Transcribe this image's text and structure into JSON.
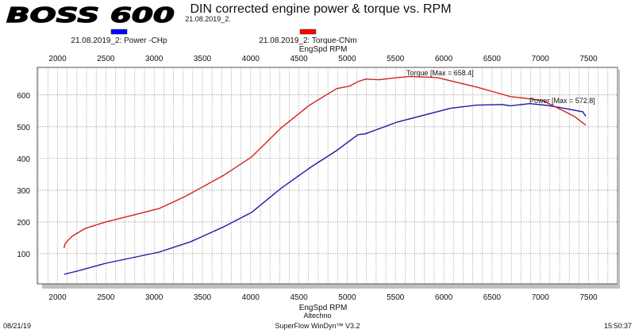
{
  "logo": "BOSS 600",
  "chart_data": {
    "type": "line",
    "title": "DIN corrected engine power & torque vs. RPM",
    "subtitle": "21.08.2019_2.",
    "xlabel": "EngSpd RPM",
    "ylabel": "",
    "xlim": [
      1790,
      7800
    ],
    "ylim": [
      5,
      687
    ],
    "x_ticks": [
      2000,
      2500,
      3000,
      3500,
      4000,
      4500,
      5000,
      5500,
      6000,
      6500,
      7000,
      7500
    ],
    "y_ticks": [
      100,
      200,
      300,
      400,
      500,
      600
    ],
    "grid": true,
    "legend_placement": "top",
    "series": [
      {
        "name": "21.08.2019_2: Power -CHp",
        "color": "#0000ff",
        "line_color": "#1a1aa8",
        "annotation": "Power  [Max = 572.8]",
        "points": [
          [
            2066,
            35
          ],
          [
            2200,
            45
          ],
          [
            2500,
            70
          ],
          [
            3050,
            105
          ],
          [
            3380,
            138
          ],
          [
            3710,
            183
          ],
          [
            4010,
            230
          ],
          [
            4310,
            305
          ],
          [
            4610,
            370
          ],
          [
            4890,
            425
          ],
          [
            5110,
            475
          ],
          [
            5190,
            478
          ],
          [
            5520,
            515
          ],
          [
            6070,
            558
          ],
          [
            6340,
            568
          ],
          [
            6600,
            570
          ],
          [
            6690,
            566
          ],
          [
            6890,
            572.8
          ],
          [
            7080,
            567
          ],
          [
            7300,
            555
          ],
          [
            7440,
            547
          ],
          [
            7470,
            533
          ]
        ]
      },
      {
        "name": "21.08.2019_2: Torque-CNm",
        "color": "#ff0000",
        "line_color": "#d42020",
        "annotation": "Torque [Max = 658.4]",
        "points": [
          [
            2066,
            118
          ],
          [
            2080,
            133
          ],
          [
            2150,
            155
          ],
          [
            2290,
            180
          ],
          [
            2500,
            200
          ],
          [
            3050,
            242
          ],
          [
            3320,
            280
          ],
          [
            3710,
            345
          ],
          [
            4010,
            405
          ],
          [
            4310,
            495
          ],
          [
            4610,
            568
          ],
          [
            4890,
            620
          ],
          [
            5025,
            628
          ],
          [
            5110,
            642
          ],
          [
            5190,
            650
          ],
          [
            5330,
            648
          ],
          [
            5520,
            655
          ],
          [
            5650,
            658.4
          ],
          [
            5930,
            655
          ],
          [
            6340,
            625
          ],
          [
            6690,
            595
          ],
          [
            7020,
            583
          ],
          [
            7160,
            562
          ],
          [
            7350,
            533
          ],
          [
            7470,
            505
          ]
        ]
      }
    ]
  },
  "footer": {
    "date": "08/21/19",
    "company": "Altechno",
    "software": "SuperFlow WinDyn™ V3.2",
    "time": "15:50:37"
  }
}
